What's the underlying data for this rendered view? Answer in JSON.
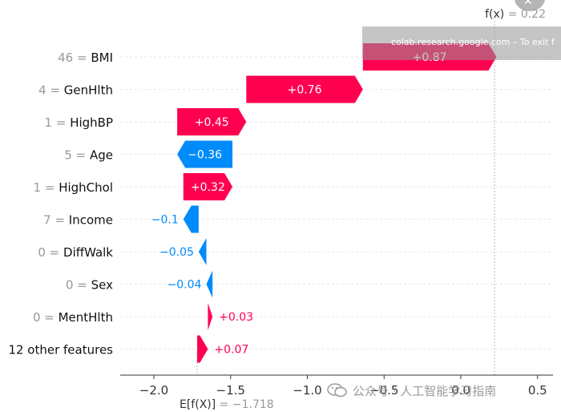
{
  "chart_data": {
    "type": "waterfall",
    "xlim": [
      -2.25,
      0.58
    ],
    "xticks": [
      -2.0,
      -1.5,
      -1.0,
      -0.5,
      0.0,
      0.5
    ],
    "xtick_labels": [
      "−2.0",
      "−1.5",
      "−1.0",
      "−0.5",
      "0.0",
      "0.5"
    ],
    "base_value": -1.718,
    "base_label_prefix": "E[f(X)]",
    "base_label_value": " = −1.718",
    "fx_value": 0.22,
    "fx_label_prefix": "f(x)",
    "fx_label_value": " = 0.22",
    "features": [
      {
        "value": "46",
        "name": "BMI",
        "shap": 0.87,
        "label": "+0.87"
      },
      {
        "value": "4",
        "name": "GenHlth",
        "shap": 0.76,
        "label": "+0.76"
      },
      {
        "value": "1",
        "name": "HighBP",
        "shap": 0.45,
        "label": "+0.45"
      },
      {
        "value": "5",
        "name": "Age",
        "shap": -0.36,
        "label": "−0.36"
      },
      {
        "value": "1",
        "name": "HighChol",
        "shap": 0.32,
        "label": "+0.32"
      },
      {
        "value": "7",
        "name": "Income",
        "shap": -0.1,
        "label": "−0.1"
      },
      {
        "value": "0",
        "name": "DiffWalk",
        "shap": -0.05,
        "label": "−0.05"
      },
      {
        "value": "0",
        "name": "Sex",
        "shap": -0.04,
        "label": "−0.04"
      },
      {
        "value": "0",
        "name": "MentHlth",
        "shap": 0.03,
        "label": "+0.03"
      },
      {
        "value": "",
        "name": "12 other features",
        "shap": 0.07,
        "label": "+0.07"
      }
    ],
    "colors": {
      "positive": "#ff0051",
      "negative": "#008bfb",
      "muted": "#999999",
      "axis": "#333333"
    }
  },
  "overlay": {
    "fullscreen_notice": "colab.research.google.com – To exit f"
  },
  "watermark": {
    "text": "公众号 · 人工智能学习指南"
  }
}
